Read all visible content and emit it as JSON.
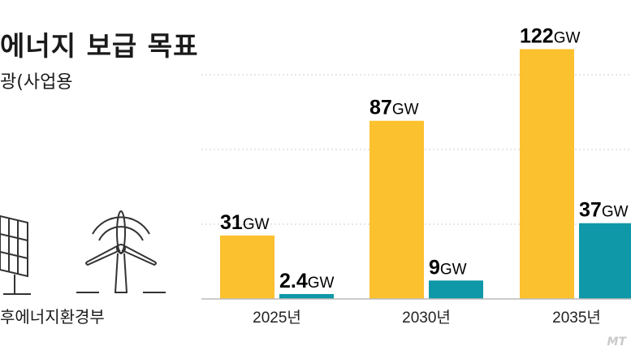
{
  "title": "에너지 보급 목표",
  "legend_label": "광(사업용",
  "source": "후에너지환경부",
  "watermark": "MT",
  "colors": {
    "solar": "#fcc12e",
    "wind": "#0e98a8",
    "grid": "#cccccc"
  },
  "icons": [
    "solar-panel-icon",
    "wind-turbine-icon"
  ],
  "chart_data": {
    "type": "bar",
    "categories": [
      "2025년",
      "2030년",
      "2035년"
    ],
    "series": [
      {
        "values": [
          31,
          87,
          122
        ],
        "labels": [
          "31",
          "87",
          "122"
        ],
        "color": "#fcc12e"
      },
      {
        "values": [
          2.4,
          9,
          37
        ],
        "labels": [
          "2.4",
          "9",
          "37"
        ],
        "color": "#0e98a8"
      }
    ],
    "unit": "GW",
    "ylim": [
      0,
      146
    ],
    "grid": true
  }
}
